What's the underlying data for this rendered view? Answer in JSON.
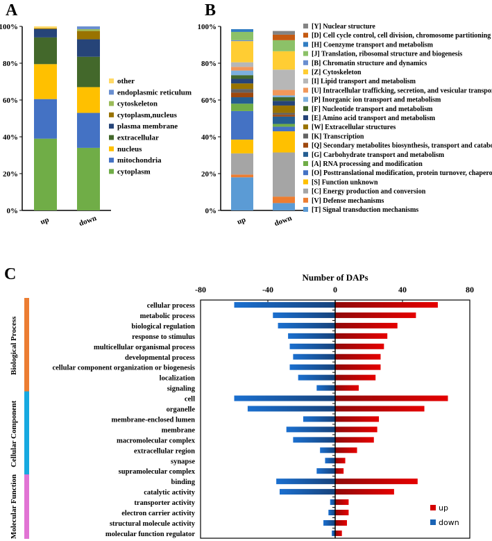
{
  "panels": {
    "a": "A",
    "b": "B",
    "c": "C"
  },
  "chart_data": [
    {
      "id": "A",
      "type": "bar",
      "stacked": true,
      "percent": true,
      "categories": [
        "up",
        "down"
      ],
      "ylim": [
        0,
        100
      ],
      "yticks": [
        "0%",
        "20%",
        "40%",
        "60%",
        "80%",
        "100%"
      ],
      "legend_position": "right",
      "series": [
        {
          "name": "cytoplasm",
          "color": "#70ad47",
          "values": [
            39,
            34
          ]
        },
        {
          "name": "mitochondria",
          "color": "#4472c4",
          "values": [
            21.5,
            19
          ]
        },
        {
          "name": "nucleus",
          "color": "#ffc000",
          "values": [
            19,
            14
          ]
        },
        {
          "name": "extracellular",
          "color": "#43682b",
          "values": [
            14.5,
            16.5
          ]
        },
        {
          "name": "plasma membrane",
          "color": "#264478",
          "values": [
            4.5,
            9.5
          ]
        },
        {
          "name": "cytoplasm,nucleus",
          "color": "#997300",
          "values": [
            0.5,
            4.5
          ]
        },
        {
          "name": "cytoskeleton",
          "color": "#9bbb59",
          "values": [
            0,
            1
          ]
        },
        {
          "name": "endoplasmic reticulum",
          "color": "#698ed0",
          "values": [
            0,
            1.5
          ]
        },
        {
          "name": "other",
          "color": "#ffd966",
          "values": [
            1,
            0
          ]
        }
      ]
    },
    {
      "id": "B",
      "type": "bar",
      "stacked": true,
      "percent": true,
      "categories": [
        "up",
        "down"
      ],
      "ylim": [
        0,
        100
      ],
      "yticks": [
        "0%",
        "20%",
        "40%",
        "60%",
        "80%",
        "100%"
      ],
      "legend_position": "right",
      "series": [
        {
          "name": "[T] Signal transduction mechanisms",
          "color": "#5b9bd5",
          "values": [
            18,
            4
          ]
        },
        {
          "name": "[V] Defense mechanisms",
          "color": "#ed7d31",
          "values": [
            1.5,
            3.5
          ]
        },
        {
          "name": "[C] Energy production and conversion",
          "color": "#a5a5a5",
          "values": [
            11.5,
            24
          ]
        },
        {
          "name": "[S] Function unknown",
          "color": "#ffc000",
          "values": [
            7.5,
            11.5
          ]
        },
        {
          "name": "[O] Posttranslational modification, protein turnover, chaperones",
          "color": "#4472c4",
          "values": [
            15.5,
            2.5
          ]
        },
        {
          "name": "[A] RNA processing and modification",
          "color": "#70ad47",
          "values": [
            4,
            1.5
          ]
        },
        {
          "name": "[G] Carbohydrate transport and metabolism",
          "color": "#255e91",
          "values": [
            3.5,
            4
          ]
        },
        {
          "name": "[Q] Secondary metabolites biosynthesis, transport and catabolism",
          "color": "#9e480e",
          "values": [
            2.5,
            1
          ]
        },
        {
          "name": "[K] Transcription",
          "color": "#636363",
          "values": [
            2,
            1
          ]
        },
        {
          "name": "[W] Extracellular structures",
          "color": "#997300",
          "values": [
            3,
            4
          ]
        },
        {
          "name": "[E] Amino acid transport and metabolism",
          "color": "#264478",
          "values": [
            2.5,
            2.5
          ]
        },
        {
          "name": "[F] Nucleotide transport and metabolism",
          "color": "#43682b",
          "values": [
            2,
            2
          ]
        },
        {
          "name": "[P] Inorganic ion transport and metabolism",
          "color": "#7cafdd",
          "values": [
            2.5,
            1
          ]
        },
        {
          "name": "[U] Intracellular trafficking, secretion, and vesicular transport",
          "color": "#f1975a",
          "values": [
            2,
            3
          ]
        },
        {
          "name": "[I] Lipid transport and metabolism",
          "color": "#b7b7b7",
          "values": [
            2.5,
            11
          ]
        },
        {
          "name": "[Z] Cytoskeleton",
          "color": "#ffcd33",
          "values": [
            11.5,
            10
          ]
        },
        {
          "name": "[B] Chromatin structure and dynamics",
          "color": "#698ed0",
          "values": [
            0.5,
            0
          ]
        },
        {
          "name": "[J] Translation, ribosomal structure and biogenesis",
          "color": "#8cc168",
          "values": [
            4.5,
            6
          ]
        },
        {
          "name": "[H] Coenzyme transport and metabolism",
          "color": "#327dc2",
          "values": [
            1.5,
            0
          ]
        },
        {
          "name": "[D] Cell cycle control, cell division, chromosome partitioning",
          "color": "#c55a11",
          "values": [
            0,
            3
          ]
        },
        {
          "name": "[Y] Nuclear structure",
          "color": "#848484",
          "values": [
            0,
            2
          ]
        }
      ]
    },
    {
      "id": "C",
      "type": "bar",
      "orientation": "horizontal",
      "title": "Number of DAPs",
      "xlim": [
        -80,
        80
      ],
      "xticks": [
        "-80",
        "-40",
        "0",
        "40",
        "80"
      ],
      "legend_position": "bottom-right",
      "legend": [
        {
          "name": "up",
          "color": "#d40000"
        },
        {
          "name": "down",
          "color": "#1a64b5"
        }
      ],
      "groups": [
        {
          "name": "Biological Process",
          "color": "#ec7d32",
          "count": 9
        },
        {
          "name": "Cellular Component",
          "color": "#17a9e0",
          "count": 8
        },
        {
          "name": "Molecular Function",
          "color": "#e173d4",
          "count": 6
        }
      ],
      "categories": [
        "cellular process",
        "metabolic process",
        "biological regulation",
        "response to stimulus",
        "multicellular organismal process",
        "developmental process",
        "cellular component organization or biogenesis",
        "localization",
        "signaling",
        "cell",
        "organelle",
        "membrane-enclosed lumen",
        "membrane",
        "macromolecular complex",
        "extracellular region",
        "synapse",
        "supramolecular complex",
        "binding",
        "catalytic activity",
        "transporter activity",
        "electron carrier activity",
        "structural molecule activity",
        "molecular function regulator"
      ],
      "series": [
        {
          "name": "up",
          "values": [
            61,
            48,
            37,
            31,
            29,
            27,
            27,
            24,
            14,
            67,
            53,
            26,
            25,
            23,
            13,
            6,
            5,
            49,
            35,
            8,
            8,
            7,
            4
          ]
        },
        {
          "name": "down",
          "values": [
            -60,
            -37,
            -34,
            -28,
            -27,
            -25,
            -27,
            -22,
            -11,
            -60,
            -52,
            -19,
            -29,
            -25,
            -9,
            -6,
            -11,
            -35,
            -33,
            -3,
            -4,
            -7,
            -2
          ]
        }
      ]
    }
  ]
}
